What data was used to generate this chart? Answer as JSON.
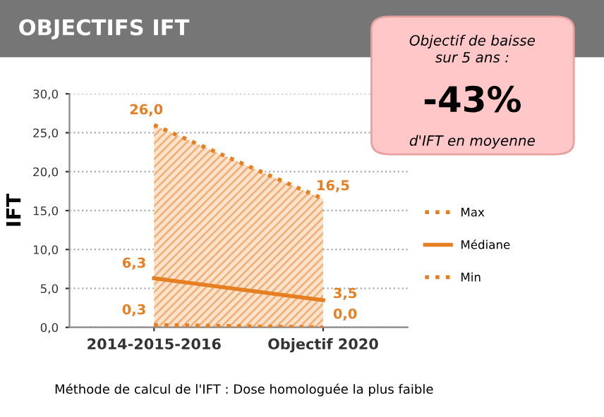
{
  "chart_data": {
    "type": "line",
    "title": "OBJECTIFS IFT",
    "ylabel": "IFT",
    "categories": [
      "2014-2015-2016",
      "Objectif 2020"
    ],
    "series": [
      {
        "name": "Max",
        "type": "area",
        "color": "#e67e22",
        "line_style": "dotted",
        "values": [
          26.0,
          16.5
        ],
        "value_labels": [
          "26,0",
          "16,5"
        ]
      },
      {
        "name": "Médiane",
        "color": "#e67e22",
        "line_style": "solid",
        "values": [
          6.3,
          3.5
        ],
        "value_labels": [
          "6,3",
          "3,5"
        ]
      },
      {
        "name": "Min",
        "color": "#e67e22",
        "line_style": "dotted",
        "values": [
          0.3,
          0.0
        ],
        "value_labels": [
          "0,3",
          "0,0"
        ]
      }
    ],
    "ylim": [
      0,
      30
    ],
    "yticks": [
      {
        "value": 0,
        "label": "0,0"
      },
      {
        "value": 5,
        "label": "5,0"
      },
      {
        "value": 10,
        "label": "10,0"
      },
      {
        "value": 15,
        "label": "15,0"
      },
      {
        "value": 20,
        "label": "20,0"
      },
      {
        "value": 25,
        "label": "25,0"
      },
      {
        "value": 30,
        "label": "30,0"
      }
    ],
    "grid": "y",
    "legend": "right",
    "marker": "none",
    "annotations": [
      "Objectif de baisse\nsur 5 ans :",
      "-43%",
      "d'IFT en moyenne",
      "Méthode de calcul de l'IFT : Dose homologuée la plus faible"
    ]
  }
}
